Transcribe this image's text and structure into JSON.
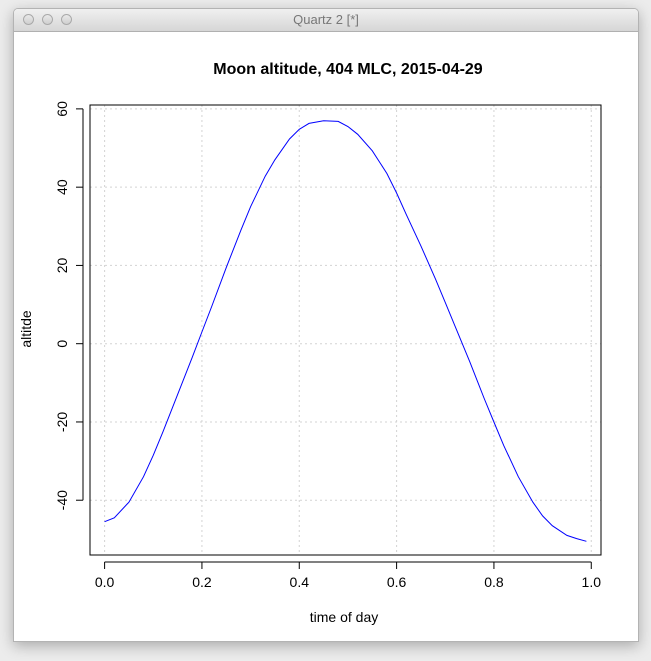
{
  "window": {
    "title": "Quartz 2 [*]",
    "buttons": [
      "close",
      "minimize",
      "zoom"
    ]
  },
  "chart_data": {
    "type": "line",
    "title": "Moon altitude, 404 MLC, 2015-04-29",
    "xlabel": "time of day",
    "ylabel": "altitde",
    "xlim": [
      -0.03,
      1.02
    ],
    "ylim": [
      -54,
      61
    ],
    "xticks": [
      0.0,
      0.2,
      0.4,
      0.6,
      0.8,
      1.0
    ],
    "xtick_labels": [
      "0.0",
      "0.2",
      "0.4",
      "0.6",
      "0.8",
      "1.0"
    ],
    "yticks": [
      -40,
      -20,
      0,
      20,
      40,
      60
    ],
    "ytick_labels": [
      "-40",
      "-20",
      "0",
      "20",
      "40",
      "60"
    ],
    "grid": true,
    "line_color": "#0000ff",
    "grid_color": "#d3d3d3",
    "series": [
      {
        "x": [
          0.0,
          0.02,
          0.05,
          0.08,
          0.1,
          0.12,
          0.15,
          0.18,
          0.2,
          0.22,
          0.25,
          0.28,
          0.3,
          0.33,
          0.35,
          0.38,
          0.4,
          0.42,
          0.45,
          0.48,
          0.5,
          0.52,
          0.55,
          0.58,
          0.6,
          0.62,
          0.65,
          0.68,
          0.7,
          0.72,
          0.75,
          0.78,
          0.8,
          0.82,
          0.85,
          0.88,
          0.9,
          0.92,
          0.95,
          0.97,
          0.99
        ],
        "values": [
          -45.5,
          -44.5,
          -40.5,
          -34,
          -28.5,
          -22.5,
          -13,
          -3.5,
          3,
          9.5,
          19.5,
          29,
          35,
          42.8,
          47,
          52.3,
          54.8,
          56.3,
          57,
          56.8,
          55.5,
          53.5,
          49.3,
          43.5,
          38.5,
          33,
          25,
          16.5,
          10.5,
          4.5,
          -4.5,
          -14,
          -20,
          -26,
          -34,
          -40.5,
          -44,
          -46.5,
          -49,
          -49.8,
          -50.5
        ]
      }
    ]
  }
}
